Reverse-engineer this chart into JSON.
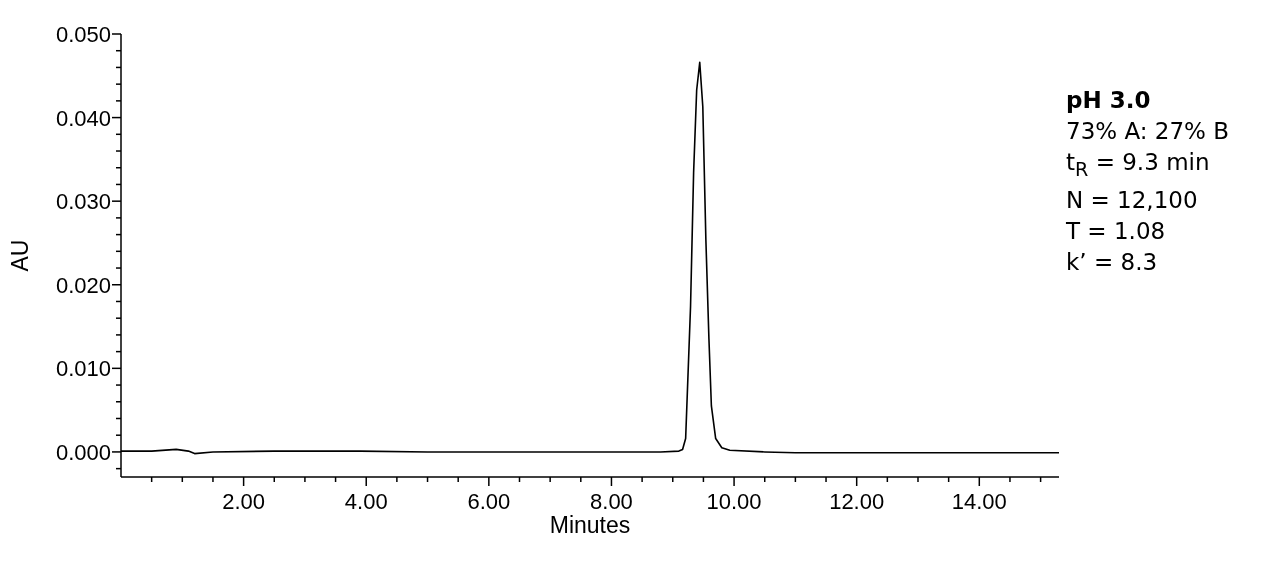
{
  "chart_data": {
    "type": "line",
    "xlabel": "Minutes",
    "ylabel": "AU",
    "x": [
      0,
      0.5,
      0.9,
      1.1,
      1.2,
      1.5,
      2.5,
      3.9,
      5.0,
      6.0,
      7.0,
      8.0,
      8.8,
      9.1,
      9.16,
      9.21,
      9.25,
      9.29,
      9.34,
      9.39,
      9.44,
      9.49,
      9.54,
      9.59,
      9.63,
      9.7,
      9.8,
      9.93,
      10.5,
      11.0,
      12.0,
      13.0,
      14.0,
      15.3
    ],
    "series": [
      {
        "color": "#000000",
        "values": [
          0.0001,
          0.0001,
          0.0003,
          0.0001,
          -0.0002,
          0.0,
          0.0001,
          0.0001,
          0.0,
          0.0,
          0.0,
          0.0,
          0.0,
          0.0001,
          0.0003,
          0.0016,
          0.0095,
          0.0174,
          0.0334,
          0.0433,
          0.0466,
          0.0413,
          0.0254,
          0.0135,
          0.0055,
          0.0016,
          0.0005,
          0.0002,
          0.0,
          -0.0001,
          -0.0001,
          -0.0001,
          -0.0001,
          -0.0001
        ]
      }
    ],
    "xlim": [
      0,
      15.3
    ],
    "ylim": [
      -0.003,
      0.05
    ],
    "xticks": [
      {
        "value": 0.5,
        "label": null
      },
      {
        "value": 1,
        "label": null
      },
      {
        "value": 1.5,
        "label": null
      },
      {
        "value": 2,
        "label": "2.00"
      },
      {
        "value": 2.5,
        "label": null
      },
      {
        "value": 3,
        "label": null
      },
      {
        "value": 3.5,
        "label": null
      },
      {
        "value": 4,
        "label": "4.00"
      },
      {
        "value": 4.5,
        "label": null
      },
      {
        "value": 5,
        "label": null
      },
      {
        "value": 5.5,
        "label": null
      },
      {
        "value": 6,
        "label": "6.00"
      },
      {
        "value": 6.5,
        "label": null
      },
      {
        "value": 7,
        "label": null
      },
      {
        "value": 7.5,
        "label": null
      },
      {
        "value": 8,
        "label": "8.00"
      },
      {
        "value": 8.5,
        "label": null
      },
      {
        "value": 9,
        "label": null
      },
      {
        "value": 9.5,
        "label": null
      },
      {
        "value": 10,
        "label": "10.00"
      },
      {
        "value": 10.5,
        "label": null
      },
      {
        "value": 11,
        "label": null
      },
      {
        "value": 11.5,
        "label": null
      },
      {
        "value": 12,
        "label": "12.00"
      },
      {
        "value": 12.5,
        "label": null
      },
      {
        "value": 13,
        "label": null
      },
      {
        "value": 13.5,
        "label": null
      },
      {
        "value": 14,
        "label": "14.00"
      },
      {
        "value": 14.5,
        "label": null
      },
      {
        "value": 15,
        "label": null
      }
    ],
    "yticks": [
      {
        "value": -0.002,
        "label": null
      },
      {
        "value": 0,
        "label": "0.000"
      },
      {
        "value": 0.002,
        "label": null
      },
      {
        "value": 0.004,
        "label": null
      },
      {
        "value": 0.006,
        "label": null
      },
      {
        "value": 0.008,
        "label": null
      },
      {
        "value": 0.01,
        "label": "0.010"
      },
      {
        "value": 0.012,
        "label": null
      },
      {
        "value": 0.014,
        "label": null
      },
      {
        "value": 0.016,
        "label": null
      },
      {
        "value": 0.018,
        "label": null
      },
      {
        "value": 0.02,
        "label": "0.020"
      },
      {
        "value": 0.022,
        "label": null
      },
      {
        "value": 0.024,
        "label": null
      },
      {
        "value": 0.026,
        "label": null
      },
      {
        "value": 0.028,
        "label": null
      },
      {
        "value": 0.03,
        "label": "0.030"
      },
      {
        "value": 0.032,
        "label": null
      },
      {
        "value": 0.034,
        "label": null
      },
      {
        "value": 0.036,
        "label": null
      },
      {
        "value": 0.038,
        "label": null
      },
      {
        "value": 0.04,
        "label": "0.040"
      },
      {
        "value": 0.042,
        "label": null
      },
      {
        "value": 0.044,
        "label": null
      },
      {
        "value": 0.046,
        "label": null
      },
      {
        "value": 0.048,
        "label": null
      },
      {
        "value": 0.05,
        "label": "0.050"
      }
    ],
    "grid": false,
    "marker": "none",
    "line_style": "solid",
    "annotations": [
      "pH 3.0",
      "73% A: 27% B",
      "t$_{R}$ = 9.3 min",
      "N = 12,100",
      "T = 1.08",
      "k’ = 8.3"
    ]
  }
}
